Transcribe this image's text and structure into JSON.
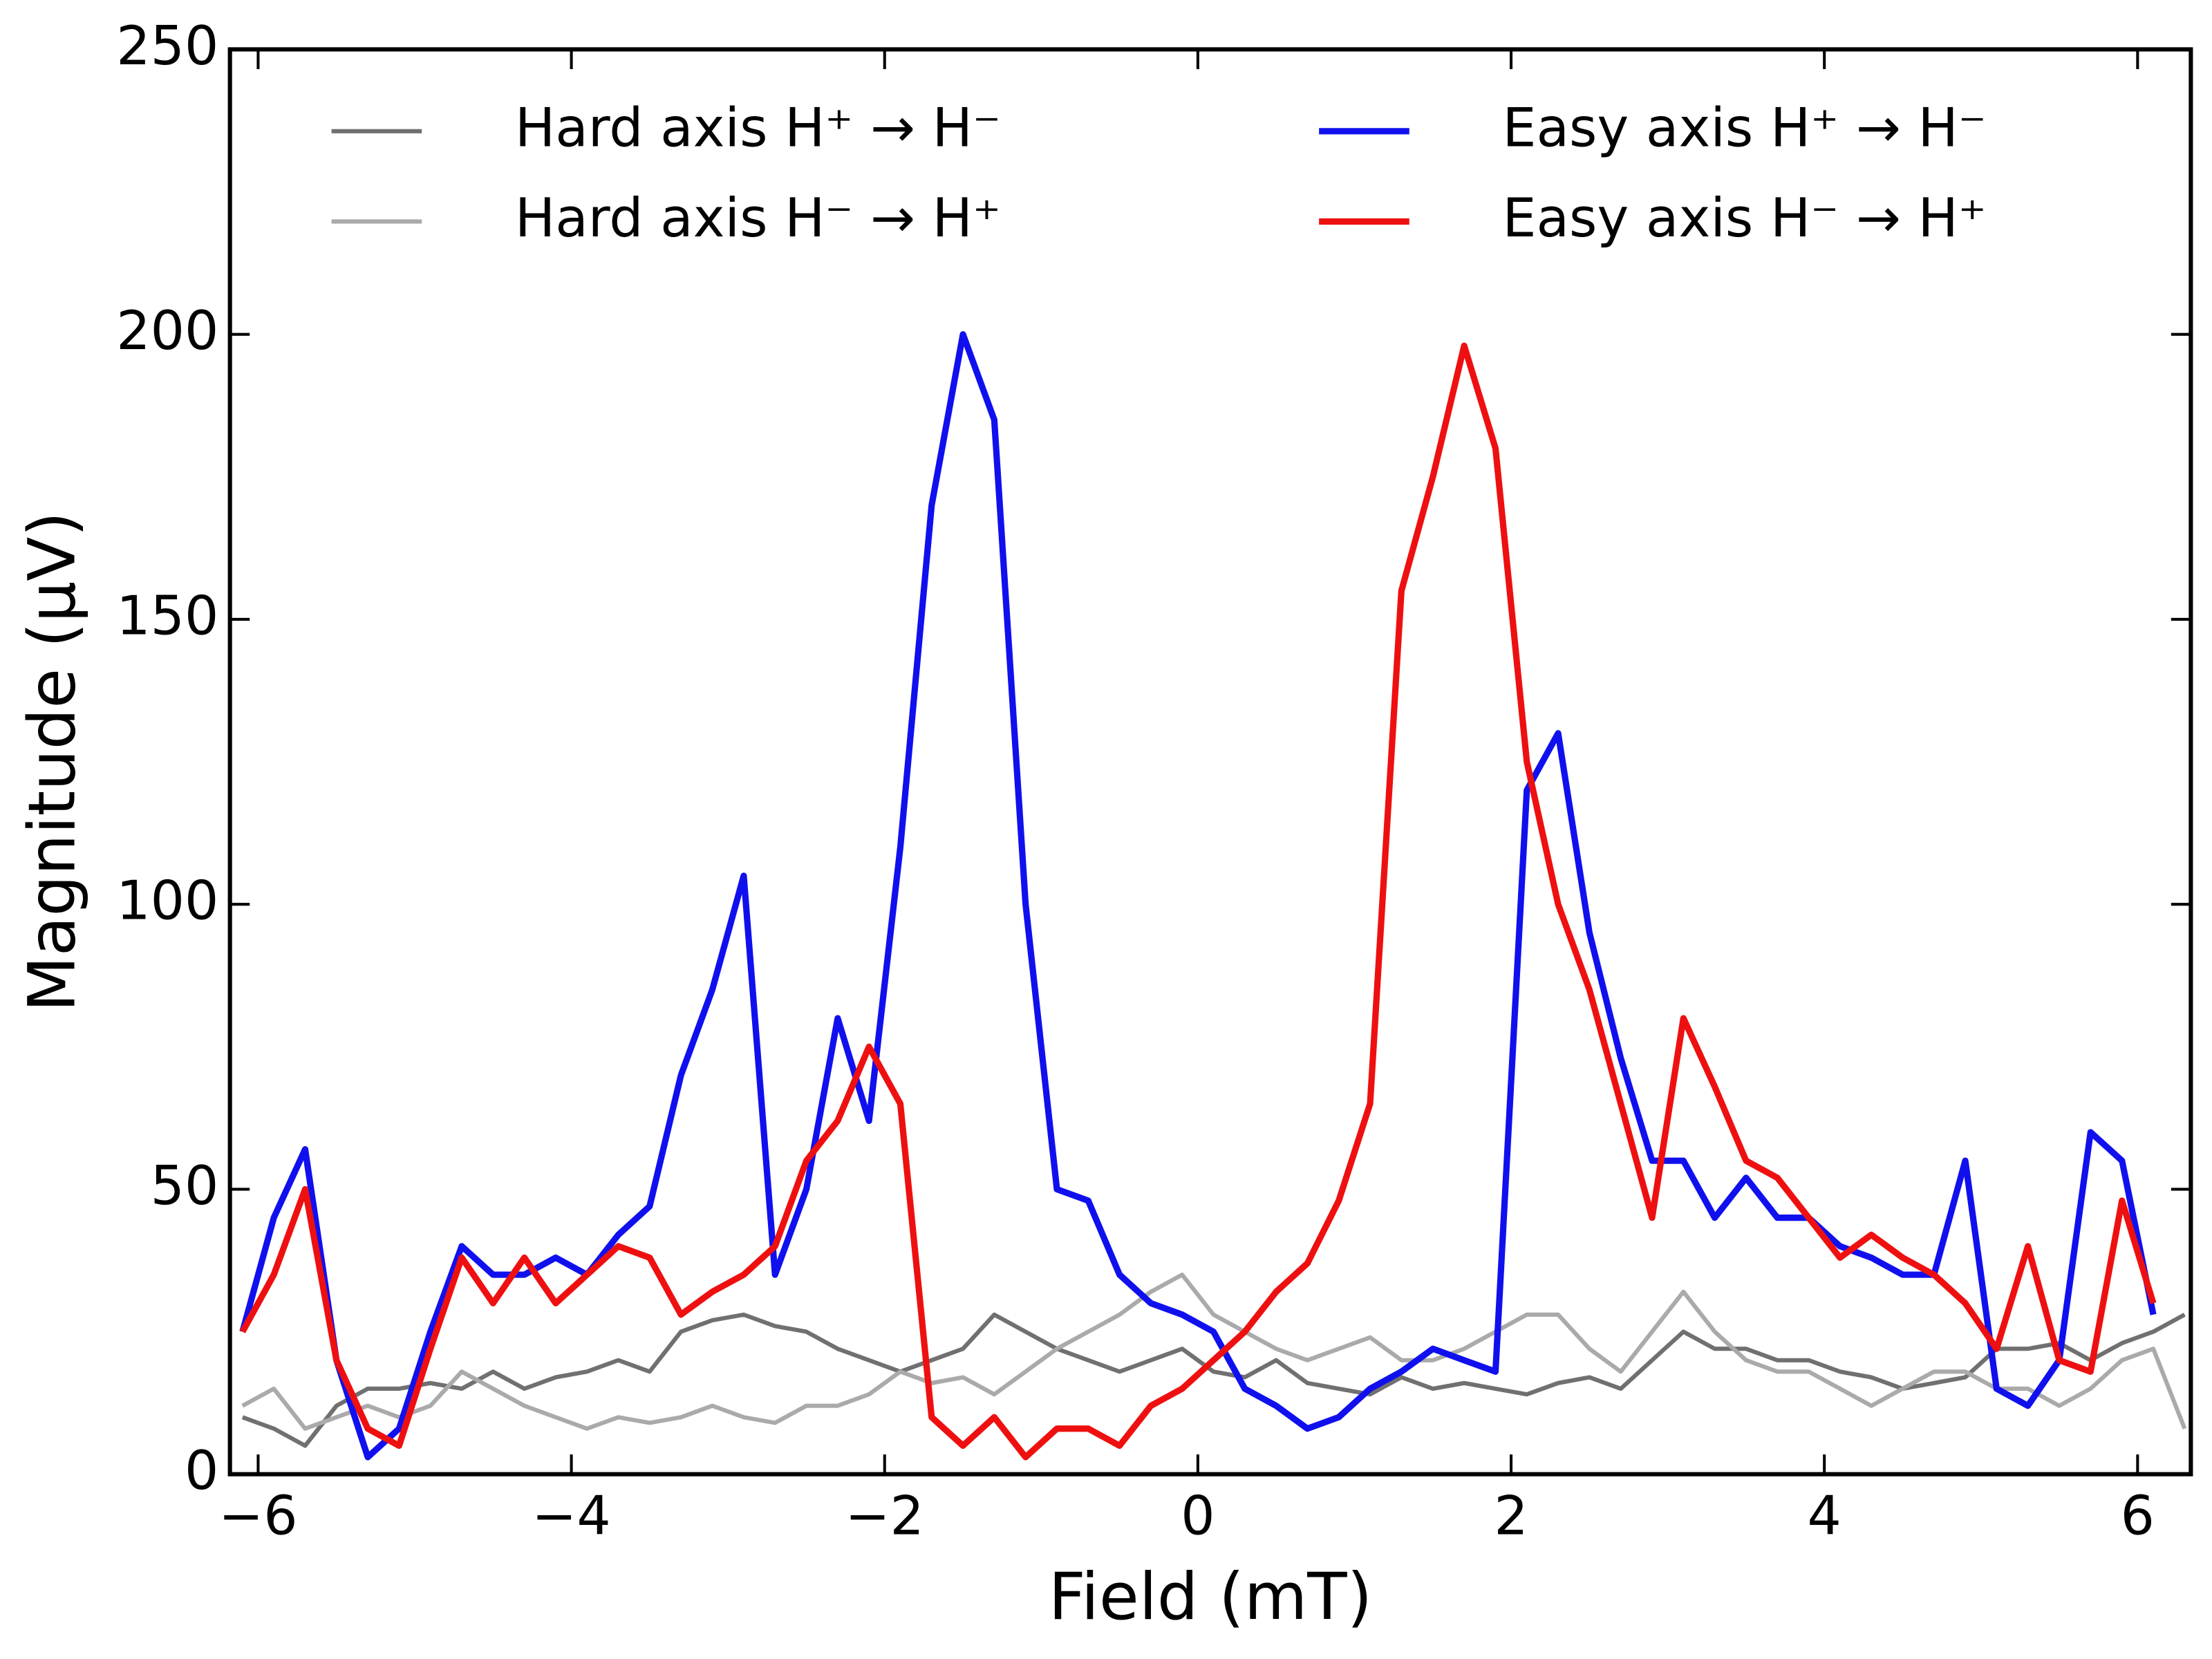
{
  "chart_data": {
    "type": "line",
    "xlabel": "Field (mT)",
    "ylabel": "Magnitude (μV)",
    "x": [
      -6.1,
      -5.9,
      -5.7,
      -5.5,
      -5.3,
      -5.1,
      -4.9,
      -4.7,
      -4.5,
      -4.3,
      -4.1,
      -3.9,
      -3.7,
      -3.5,
      -3.3,
      -3.1,
      -2.9,
      -2.7,
      -2.5,
      -2.3,
      -2.1,
      -1.9,
      -1.7,
      -1.5,
      -1.3,
      -1.1,
      -0.9,
      -0.7,
      -0.5,
      -0.3,
      -0.1,
      0.1,
      0.3,
      0.5,
      0.7,
      0.9,
      1.1,
      1.3,
      1.5,
      1.7,
      1.9,
      2.1,
      2.3,
      2.5,
      2.7,
      2.9,
      3.1,
      3.3,
      3.5,
      3.7,
      3.9,
      4.1,
      4.3,
      4.5,
      4.7,
      4.9,
      5.1,
      5.3,
      5.5,
      5.7,
      5.9,
      6.1,
      6.3
    ],
    "series": [
      {
        "name": "Hard axis H⁺ → H⁻",
        "color": "#707070",
        "width": 3,
        "values": [
          10,
          8,
          5,
          12,
          15,
          15,
          16,
          15,
          18,
          15,
          17,
          18,
          20,
          18,
          25,
          27,
          28,
          26,
          25,
          22,
          20,
          18,
          20,
          22,
          28,
          25,
          22,
          20,
          18,
          20,
          22,
          18,
          17,
          20,
          16,
          15,
          14,
          17,
          15,
          16,
          15,
          14,
          16,
          17,
          15,
          20,
          25,
          22,
          22,
          20,
          20,
          18,
          17,
          15,
          16,
          17,
          22,
          22,
          23,
          20,
          23,
          25,
          28
        ]
      },
      {
        "name": "Hard axis H⁻ → H⁺",
        "color": "#aaaaaa",
        "width": 3,
        "values": [
          12,
          15,
          8,
          10,
          12,
          10,
          12,
          18,
          15,
          12,
          10,
          8,
          10,
          9,
          10,
          12,
          10,
          9,
          12,
          12,
          14,
          18,
          16,
          17,
          14,
          18,
          22,
          25,
          28,
          32,
          35,
          28,
          25,
          22,
          20,
          22,
          24,
          20,
          20,
          22,
          25,
          28,
          28,
          22,
          18,
          25,
          32,
          25,
          20,
          18,
          18,
          15,
          12,
          15,
          18,
          18,
          15,
          15,
          12,
          15,
          20,
          22,
          8
        ]
      },
      {
        "name": "Easy axis H⁺ → H⁻",
        "color": "#1010ee",
        "width": 4.5,
        "values": [
          25,
          45,
          57,
          20,
          3,
          8,
          25,
          40,
          35,
          35,
          38,
          35,
          42,
          47,
          70,
          85,
          105,
          35,
          50,
          80,
          62,
          110,
          170,
          200,
          185,
          100,
          50,
          48,
          35,
          30,
          28,
          25,
          15,
          12,
          8,
          10,
          15,
          18,
          22,
          20,
          18,
          120,
          130,
          95,
          73,
          55,
          55,
          45,
          52,
          45,
          45,
          40,
          38,
          35,
          35,
          55,
          15,
          12,
          20,
          60,
          55,
          28,
          null
        ]
      },
      {
        "name": "Easy axis H⁻ → H⁺",
        "color": "#ee1010",
        "width": 4.5,
        "values": [
          25,
          35,
          50,
          20,
          8,
          5,
          22,
          38,
          30,
          38,
          30,
          35,
          40,
          38,
          28,
          32,
          35,
          40,
          55,
          62,
          75,
          65,
          10,
          5,
          10,
          3,
          8,
          8,
          5,
          12,
          15,
          20,
          25,
          32,
          37,
          48,
          65,
          155,
          175,
          198,
          180,
          125,
          100,
          85,
          65,
          45,
          80,
          68,
          55,
          52,
          45,
          38,
          42,
          38,
          35,
          30,
          22,
          40,
          20,
          18,
          48,
          30,
          null
        ]
      }
    ],
    "xlim": [
      -6.18,
      6.34
    ],
    "ylim": [
      0,
      250
    ],
    "xticks": [
      {
        "value": -6,
        "label": "−6"
      },
      {
        "value": -4,
        "label": "−4"
      },
      {
        "value": -2,
        "label": "−2"
      },
      0,
      2,
      4,
      6
    ],
    "yticks": [
      0,
      50,
      100,
      150,
      200,
      250
    ],
    "legend": "upper center",
    "grid": false
  }
}
